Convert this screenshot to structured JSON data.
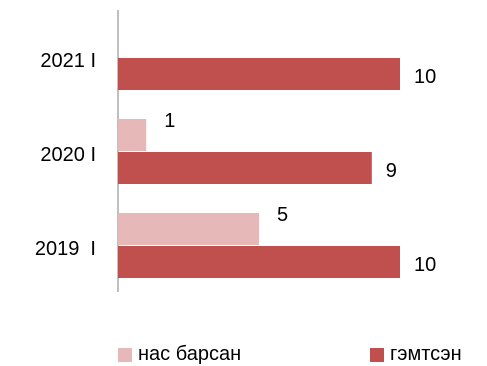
{
  "chart_data": {
    "type": "bar",
    "orientation": "horizontal",
    "categories": [
      "2021 I",
      "2020 I",
      "2019  I"
    ],
    "series": [
      {
        "name": "нас барсан",
        "color": "#e6b9b8",
        "values": [
          0,
          1,
          5
        ]
      },
      {
        "name": "гэмтсэн",
        "color": "#c0504d",
        "values": [
          10,
          9,
          10
        ]
      }
    ],
    "data_labels": [
      [
        "",
        "1",
        "5"
      ],
      [
        "10",
        "9",
        "10"
      ]
    ],
    "xlim": [
      0,
      12
    ],
    "grid": false,
    "legend_position": "bottom"
  }
}
